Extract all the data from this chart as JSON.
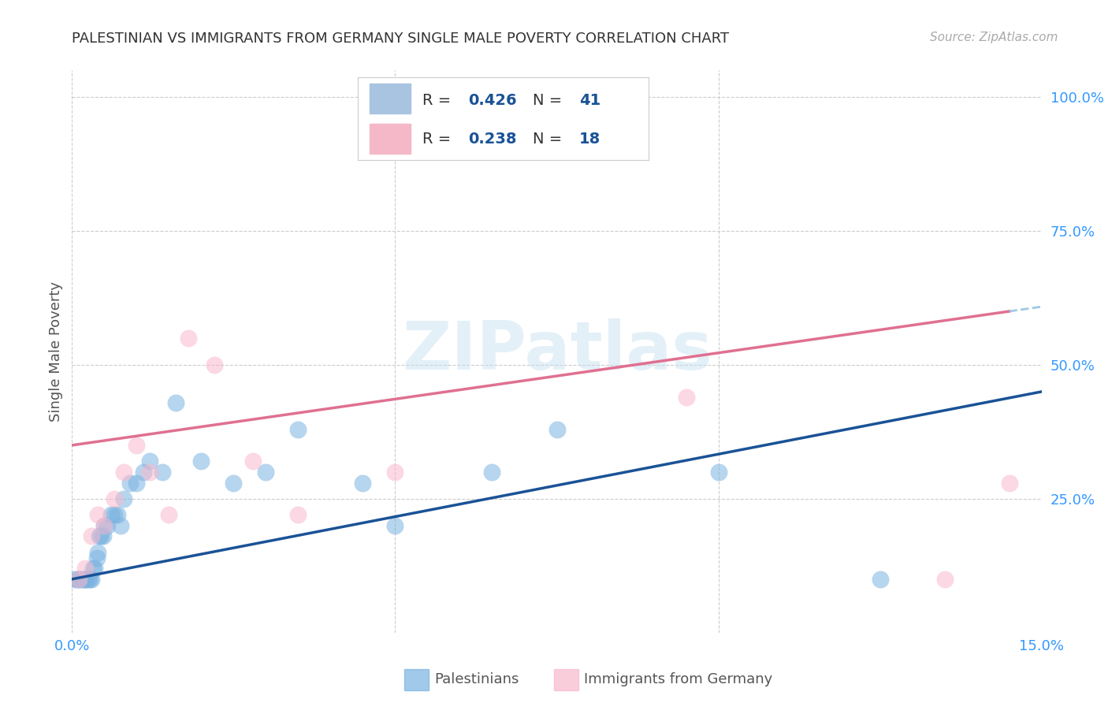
{
  "title": "PALESTINIAN VS IMMIGRANTS FROM GERMANY SINGLE MALE POVERTY CORRELATION CHART",
  "source": "Source: ZipAtlas.com",
  "ylabel": "Single Male Poverty",
  "xlim": [
    0.0,
    15.0
  ],
  "ylim": [
    0.0,
    105.0
  ],
  "ytick_vals": [
    25,
    50,
    75,
    100
  ],
  "ytick_labels": [
    "25.0%",
    "50.0%",
    "75.0%",
    "100.0%"
  ],
  "xtick_vals": [
    0,
    5,
    10,
    15
  ],
  "xtick_labels": [
    "0.0%",
    "",
    "",
    "15.0%"
  ],
  "blue_scatter": "#7ab3e0",
  "pink_scatter": "#f8b8cc",
  "trendline_blue": "#1a5296",
  "trendline_pink": "#e07090",
  "trendline_dash": "#90c0e0",
  "tick_color": "#3399ff",
  "legend_color1": "#a8c4e0",
  "legend_color2": "#f4b8c8",
  "legend_r_color": "#1a5296",
  "legend_n_color": "#1a5296",
  "legend_text_color": "#333333",
  "watermark": "ZIPatlas",
  "label_palestinians": "Palestinians",
  "label_germany": "Immigrants from Germany",
  "palestinians_x": [
    0.05,
    0.08,
    0.1,
    0.12,
    0.15,
    0.18,
    0.2,
    0.22,
    0.25,
    0.28,
    0.3,
    0.32,
    0.35,
    0.38,
    0.4,
    0.42,
    0.45,
    0.48,
    0.5,
    0.55,
    0.6,
    0.65,
    0.7,
    0.75,
    0.8,
    0.9,
    1.0,
    1.1,
    1.2,
    1.4,
    1.6,
    2.0,
    2.5,
    3.0,
    3.5,
    4.5,
    5.0,
    6.5,
    7.5,
    10.0,
    12.5
  ],
  "palestinians_y": [
    10,
    10,
    10,
    10,
    10,
    10,
    10,
    10,
    10,
    10,
    10,
    12,
    12,
    14,
    15,
    18,
    18,
    18,
    20,
    20,
    22,
    22,
    22,
    20,
    25,
    28,
    28,
    30,
    32,
    30,
    43,
    32,
    28,
    30,
    38,
    28,
    20,
    30,
    38,
    30,
    10
  ],
  "germany_x": [
    0.1,
    0.2,
    0.3,
    0.4,
    0.5,
    0.65,
    0.8,
    1.0,
    1.2,
    1.5,
    1.8,
    2.2,
    2.8,
    3.5,
    5.0,
    9.5,
    13.5,
    14.5
  ],
  "germany_y": [
    10,
    12,
    18,
    22,
    20,
    25,
    30,
    35,
    30,
    22,
    55,
    50,
    32,
    22,
    30,
    44,
    10,
    28
  ],
  "blue_trendline_x0": 0.0,
  "blue_trendline_y0": 10.0,
  "blue_trendline_x1": 15.0,
  "blue_trendline_y1": 45.0,
  "pink_trendline_x0": 0.0,
  "pink_trendline_y0": 35.0,
  "pink_solid_x1": 14.5,
  "pink_solid_y1": 60.0,
  "pink_dash_x0": 14.5,
  "pink_dash_x1": 15.0
}
